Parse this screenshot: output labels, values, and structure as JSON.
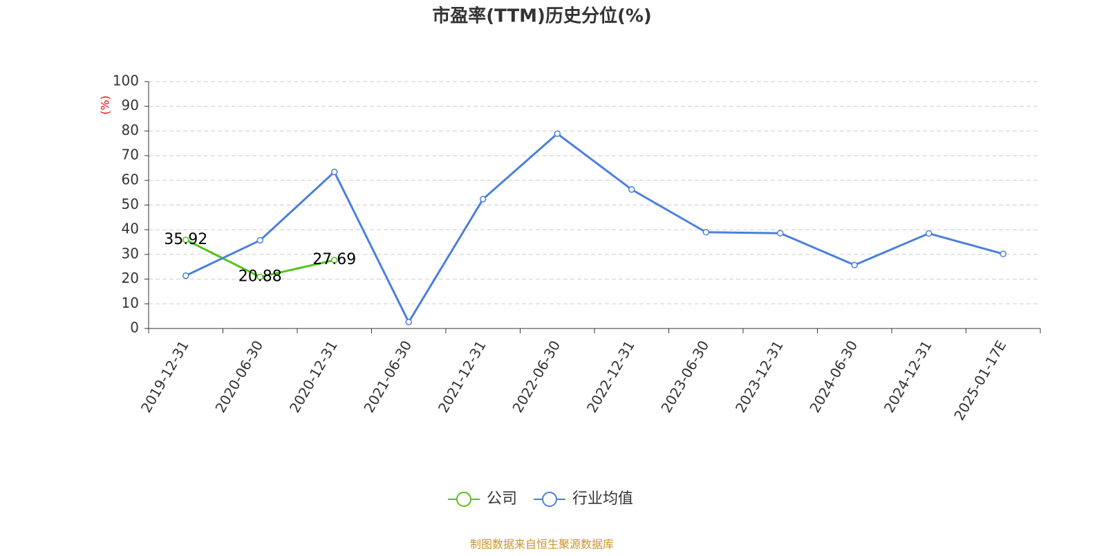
{
  "chart_data": {
    "type": "line",
    "title": "市盈率(TTM)历史分位(%)",
    "y_label": "(%)",
    "categories": [
      "2019-12-31",
      "2020-06-30",
      "2020-12-31",
      "2021-06-30",
      "2021-12-31",
      "2022-06-30",
      "2022-12-31",
      "2023-06-30",
      "2023-12-31",
      "2024-06-30",
      "2024-12-31",
      "2025-01-17E"
    ],
    "series": [
      {
        "name": "公司",
        "color": "#52c41a",
        "values": [
          35.92,
          20.88,
          27.69,
          null,
          null,
          null,
          null,
          null,
          null,
          null,
          null,
          null
        ],
        "show_labels": true
      },
      {
        "name": "行业均值",
        "color": "#4a7fdd",
        "values": [
          21.4,
          35.7,
          63.4,
          2.6,
          52.4,
          78.9,
          56.3,
          39.0,
          38.6,
          25.7,
          38.5,
          30.2
        ],
        "show_labels": false
      }
    ],
    "ylim": [
      0,
      100
    ],
    "yticks": [
      0,
      10,
      20,
      30,
      40,
      50,
      60,
      70,
      80,
      90,
      100
    ],
    "grid": true,
    "legend": "bottom",
    "source": "制图数据来自恒生聚源数据库"
  }
}
